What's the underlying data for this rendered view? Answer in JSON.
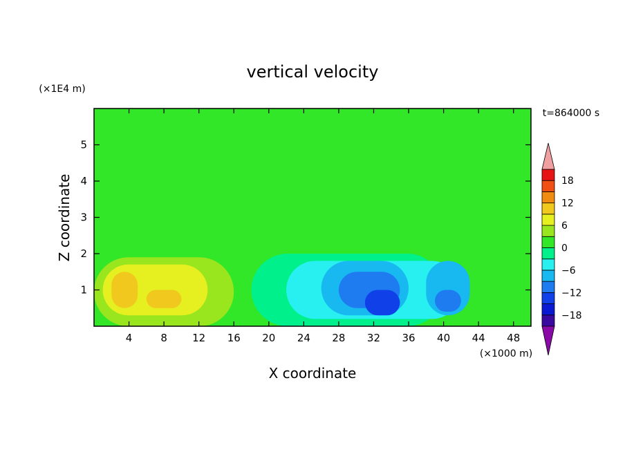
{
  "chart_data": {
    "type": "heatmap",
    "title": "vertical velocity",
    "xlabel": "X coordinate",
    "ylabel": "Z coordinate",
    "x_unit": "(×1000 m)",
    "y_unit": "(×1E4 m)",
    "time_label": "t=864000 s",
    "xlim": [
      0,
      50
    ],
    "ylim": [
      0,
      6
    ],
    "x_ticks": [
      4,
      8,
      12,
      16,
      20,
      24,
      28,
      32,
      36,
      40,
      44,
      48
    ],
    "y_ticks": [
      1,
      2,
      3,
      4,
      5
    ],
    "grid": false,
    "colorbar": {
      "levels": [
        -21,
        -18,
        -15,
        -12,
        -9,
        -6,
        -3,
        0,
        3,
        6,
        9,
        12,
        15,
        18,
        21
      ],
      "tick_labels": [
        "18",
        "12",
        "6",
        "0",
        "−6",
        "−12",
        "−18"
      ],
      "tick_values": [
        18,
        12,
        6,
        0,
        -6,
        -12,
        -18
      ],
      "colors": [
        "#8a0aa8",
        "#3a0aa0",
        "#0a1ad2",
        "#1040e8",
        "#1e7cf0",
        "#18b8f0",
        "#28f0f0",
        "#00f08c",
        "#32e628",
        "#9ae61e",
        "#e6f020",
        "#f0c81e",
        "#f08c10",
        "#f05014",
        "#e61414",
        "#f0a0a0"
      ]
    },
    "background_value": 1,
    "features": [
      {
        "x": 0,
        "z": 0,
        "w": 50,
        "h": 1.7,
        "value": 2
      },
      {
        "x": 0,
        "z": 0,
        "w": 16,
        "h": 1.9,
        "value": 5
      },
      {
        "x": 1,
        "z": 0.3,
        "w": 12,
        "h": 1.4,
        "value": 8
      },
      {
        "x": 2,
        "z": 0.5,
        "w": 3,
        "h": 1.0,
        "value": 11
      },
      {
        "x": 6,
        "z": 0.5,
        "w": 4,
        "h": 0.5,
        "value": 11
      },
      {
        "x": 18,
        "z": 0,
        "w": 22,
        "h": 2.0,
        "value": -2
      },
      {
        "x": 22,
        "z": 0.2,
        "w": 20,
        "h": 1.6,
        "value": -5
      },
      {
        "x": 26,
        "z": 0.3,
        "w": 10,
        "h": 1.5,
        "value": -9
      },
      {
        "x": 28,
        "z": 0.5,
        "w": 7,
        "h": 1.0,
        "value": -12
      },
      {
        "x": 31,
        "z": 0.3,
        "w": 4,
        "h": 0.7,
        "value": -15
      },
      {
        "x": 38,
        "z": 0.3,
        "w": 5,
        "h": 1.5,
        "value": -7
      },
      {
        "x": 39,
        "z": 0.4,
        "w": 3,
        "h": 0.6,
        "value": -11
      }
    ]
  }
}
